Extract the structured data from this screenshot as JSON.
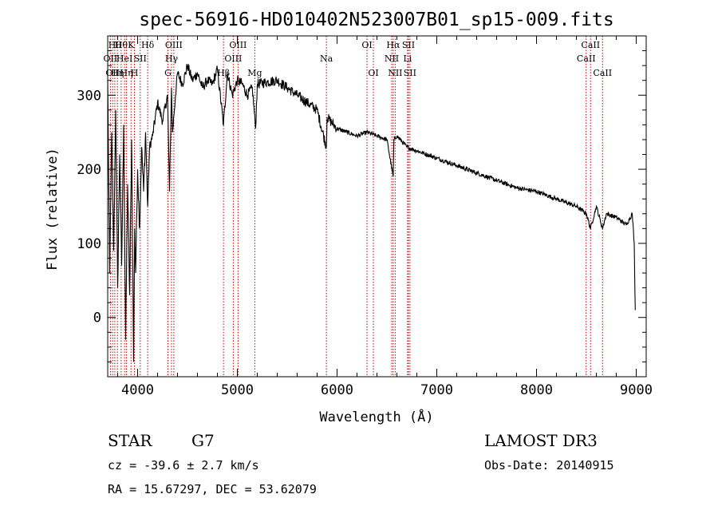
{
  "chart_data": {
    "type": "line",
    "title": "spec-56916-HD010402N523007B01_sp15-009.fits",
    "xlabel": "Wavelength (Å)",
    "ylabel": "Flux (relative)",
    "xlim": [
      3700,
      9100
    ],
    "ylim": [
      -80,
      380
    ],
    "xticks": [
      4000,
      5000,
      6000,
      7000,
      8000,
      9000
    ],
    "yticks": [
      0,
      100,
      200,
      300
    ],
    "series": [
      {
        "name": "spectrum",
        "x": [
          3700,
          3720,
          3740,
          3760,
          3780,
          3800,
          3820,
          3840,
          3860,
          3880,
          3900,
          3920,
          3940,
          3960,
          3970,
          3980,
          4000,
          4020,
          4040,
          4060,
          4080,
          4101,
          4120,
          4150,
          4200,
          4250,
          4300,
          4320,
          4340,
          4350,
          4380,
          4400,
          4450,
          4500,
          4550,
          4600,
          4650,
          4700,
          4750,
          4800,
          4861,
          4900,
          4950,
          5000,
          5050,
          5100,
          5150,
          5183,
          5200,
          5300,
          5400,
          5500,
          5600,
          5700,
          5800,
          5893,
          5900,
          6000,
          6100,
          6200,
          6300,
          6400,
          6500,
          6563,
          6570,
          6600,
          6700,
          6800,
          7000,
          7200,
          7400,
          7600,
          7800,
          8000,
          8200,
          8400,
          8500,
          8542,
          8600,
          8662,
          8700,
          8800,
          8900,
          8960,
          8980,
          8990
        ],
        "y": [
          320,
          60,
          250,
          90,
          280,
          40,
          220,
          70,
          260,
          -30,
          180,
          30,
          240,
          -60,
          120,
          60,
          200,
          120,
          230,
          170,
          250,
          150,
          230,
          245,
          290,
          265,
          300,
          170,
          310,
          250,
          300,
          330,
          315,
          340,
          320,
          330,
          310,
          320,
          315,
          335,
          260,
          330,
          300,
          320,
          315,
          300,
          310,
          255,
          315,
          318,
          320,
          310,
          300,
          290,
          280,
          230,
          270,
          255,
          250,
          245,
          250,
          245,
          240,
          190,
          240,
          245,
          230,
          225,
          215,
          205,
          195,
          185,
          175,
          170,
          160,
          150,
          140,
          120,
          150,
          120,
          140,
          135,
          125,
          140,
          100,
          10
        ]
      }
    ],
    "line_markers": [
      {
        "w": 3727,
        "label": "OII",
        "row": 2
      },
      {
        "w": 3750,
        "label": "OII",
        "row": 3
      },
      {
        "w": 3771,
        "label": "Hθ",
        "row": 1
      },
      {
        "w": 3798,
        "label": "Hη",
        "row": 3
      },
      {
        "w": 3835,
        "label": "Hθ",
        "row": 1
      },
      {
        "w": 3869,
        "label": "HeI",
        "row": 2
      },
      {
        "w": 3889,
        "label": "Hη",
        "row": 3
      },
      {
        "w": 3934,
        "label": "K",
        "row": 1
      },
      {
        "w": 3968,
        "label": "H",
        "row": 3
      },
      {
        "w": 4026,
        "label": "SII",
        "row": 2
      },
      {
        "w": 4101,
        "label": "Hδ",
        "row": 1
      },
      {
        "w": 4304,
        "label": "G",
        "row": 3
      },
      {
        "w": 4340,
        "label": "Hγ",
        "row": 2
      },
      {
        "w": 4363,
        "label": "OIII",
        "row": 1
      },
      {
        "w": 4861,
        "label": "Hβ",
        "row": 3
      },
      {
        "w": 4959,
        "label": "OIII",
        "row": 2
      },
      {
        "w": 5007,
        "label": "OIII",
        "row": 1
      },
      {
        "w": 5175,
        "label": "Mg",
        "row": 3
      },
      {
        "w": 5893,
        "label": "Na",
        "row": 2
      },
      {
        "w": 6300,
        "label": "OI",
        "row": 1
      },
      {
        "w": 6364,
        "label": "OI",
        "row": 3
      },
      {
        "w": 6548,
        "label": "NII",
        "row": 2
      },
      {
        "w": 6563,
        "label": "Hα",
        "row": 1
      },
      {
        "w": 6583,
        "label": "NII",
        "row": 3
      },
      {
        "w": 6707,
        "label": "Li",
        "row": 2
      },
      {
        "w": 6716,
        "label": "SII",
        "row": 1
      },
      {
        "w": 6731,
        "label": "SII",
        "row": 3
      },
      {
        "w": 8498,
        "label": "CaII",
        "row": 2
      },
      {
        "w": 8542,
        "label": "CaII",
        "row": 1
      },
      {
        "w": 8662,
        "label": "CaII",
        "row": 3
      }
    ]
  },
  "info": {
    "class": "STAR",
    "subclass": "G7",
    "survey": "LAMOST DR3",
    "cz": "cz = -39.6 ± 2.7 km/s",
    "obs_date": "Obs-Date: 20140915",
    "coords": "RA =  15.67297, DEC =  53.62079"
  },
  "colors": {
    "marker": "#c00000",
    "spectrum": "#000000"
  }
}
